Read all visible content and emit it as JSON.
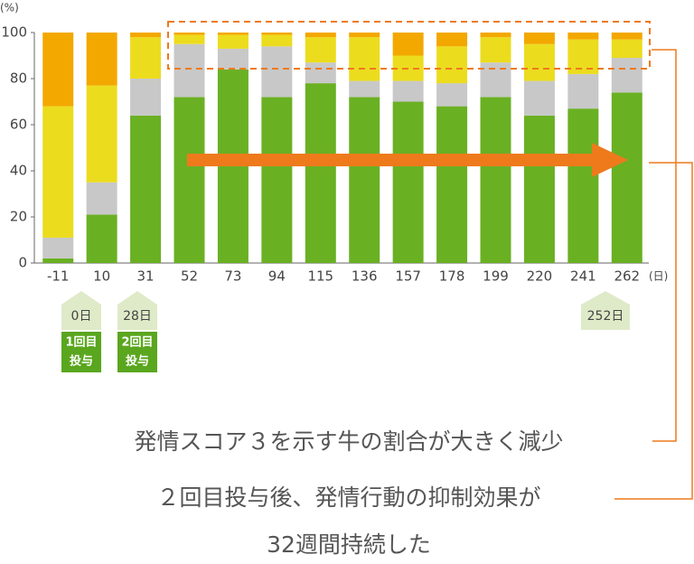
{
  "chart_data": {
    "type": "stacked_bar",
    "y_unit": "(%)",
    "x_unit": "(日)",
    "categories": [
      "-11",
      "10",
      "31",
      "52",
      "73",
      "94",
      "115",
      "136",
      "157",
      "178",
      "199",
      "220",
      "241",
      "262"
    ],
    "series": [
      {
        "color": "#6ab023",
        "values": [
          2,
          21,
          64,
          72,
          84,
          72,
          78,
          72,
          70,
          68,
          72,
          64,
          67,
          74
        ]
      },
      {
        "color": "#c8c8c8",
        "values": [
          9,
          14,
          16,
          23,
          9,
          22,
          9,
          7,
          9,
          10,
          15,
          15,
          15,
          15
        ]
      },
      {
        "color": "#ecdc1e",
        "values": [
          57,
          42,
          18,
          4,
          6,
          5,
          11,
          19,
          11,
          16,
          11,
          16,
          15,
          8
        ]
      },
      {
        "color": "#f3a800",
        "values": [
          32,
          23,
          2,
          1,
          1,
          1,
          2,
          2,
          10,
          6,
          2,
          5,
          3,
          3
        ]
      }
    ],
    "ylim": [
      0,
      100
    ],
    "yticks": [
      0,
      20,
      40,
      60,
      80,
      100
    ],
    "markers": [
      {
        "day": "0日",
        "label": [
          "1回目",
          "投与"
        ]
      },
      {
        "day": "28日",
        "label": [
          "2回目",
          "投与"
        ]
      },
      {
        "day": "252日"
      }
    ],
    "callouts": [
      {
        "lines": [
          "発情スコア３を示す牛の割合が大きく減少"
        ]
      },
      {
        "lines": [
          "２回目投与後、発情行動の抑制効果が",
          "32週間持続した"
        ]
      }
    ]
  }
}
